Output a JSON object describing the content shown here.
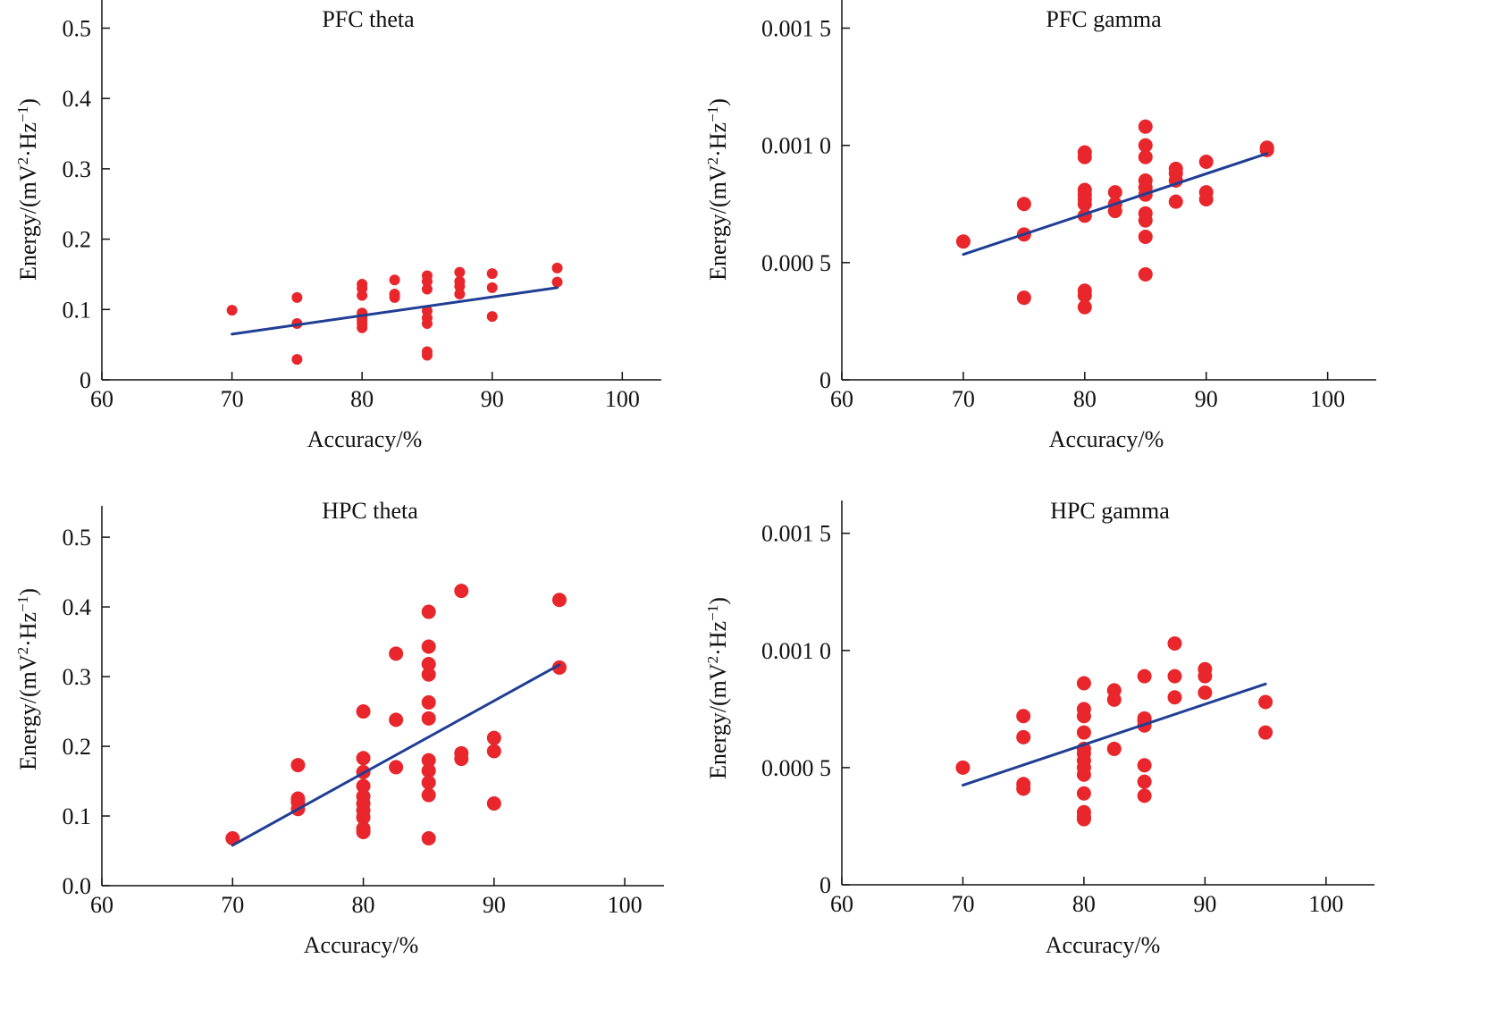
{
  "figure": {
    "colors": {
      "point": "#e8262b",
      "fit": "#1f3e94",
      "axis": "#111111"
    }
  },
  "chart_data": [
    {
      "type": "scatter",
      "title": "PFC theta",
      "xlabel": "Accuracy/%",
      "ylabel": {
        "base": "Energy/(mV",
        "sup1": "2",
        "mid": "·Hz",
        "sup2": "−1",
        "end": ")"
      },
      "xlim": [
        60,
        103
      ],
      "ylim": [
        0,
        0.54
      ],
      "xticks": [
        60,
        70,
        80,
        90,
        100
      ],
      "xtick_labels": [
        "60",
        "70",
        "80",
        "90",
        "100"
      ],
      "yticks": [
        0,
        0.1,
        0.2,
        0.3,
        0.4,
        0.5
      ],
      "ytick_labels": [
        "0",
        "0.1",
        "0.2",
        "0.3",
        "0.4",
        "0.5"
      ],
      "grid": false,
      "marker_radius": 6,
      "points": [
        [
          70,
          0.099
        ],
        [
          75,
          0.117
        ],
        [
          75,
          0.08
        ],
        [
          75,
          0.029
        ],
        [
          80,
          0.136
        ],
        [
          80,
          0.13
        ],
        [
          80,
          0.12
        ],
        [
          80,
          0.095
        ],
        [
          80,
          0.09
        ],
        [
          80,
          0.085
        ],
        [
          80,
          0.08
        ],
        [
          80,
          0.074
        ],
        [
          82.5,
          0.142
        ],
        [
          82.5,
          0.122
        ],
        [
          82.5,
          0.117
        ],
        [
          85,
          0.148
        ],
        [
          85,
          0.14
        ],
        [
          85,
          0.129
        ],
        [
          85,
          0.098
        ],
        [
          85,
          0.088
        ],
        [
          85,
          0.08
        ],
        [
          85,
          0.04
        ],
        [
          85,
          0.035
        ],
        [
          87.5,
          0.153
        ],
        [
          87.5,
          0.14
        ],
        [
          87.5,
          0.133
        ],
        [
          87.5,
          0.122
        ],
        [
          90,
          0.151
        ],
        [
          90,
          0.131
        ],
        [
          90,
          0.09
        ],
        [
          95,
          0.159
        ],
        [
          95,
          0.139
        ]
      ],
      "fit_line": {
        "x": [
          70,
          95
        ],
        "y": [
          0.065,
          0.131
        ]
      }
    },
    {
      "type": "scatter",
      "title": "PFC gamma",
      "xlabel": "Accuracy/%",
      "ylabel": {
        "base": "Energy/(mV",
        "sup1": "2",
        "mid": "·Hz",
        "sup2": "−1",
        "end": ")"
      },
      "xlim": [
        60,
        104
      ],
      "ylim": [
        0,
        0.00162
      ],
      "xticks": [
        60,
        70,
        80,
        90,
        100
      ],
      "xtick_labels": [
        "60",
        "70",
        "80",
        "90",
        "100"
      ],
      "yticks": [
        0,
        0.0005,
        0.001,
        0.0015
      ],
      "ytick_labels": [
        "0",
        "0.000 5",
        "0.001 0",
        "0.001 5"
      ],
      "grid": false,
      "marker_radius": 8,
      "points": [
        [
          70,
          0.00059
        ],
        [
          75,
          0.00075
        ],
        [
          75,
          0.00062
        ],
        [
          75,
          0.00035
        ],
        [
          80,
          0.00097
        ],
        [
          80,
          0.00095
        ],
        [
          80,
          0.00081
        ],
        [
          80,
          0.00079
        ],
        [
          80,
          0.00077
        ],
        [
          80,
          0.00075
        ],
        [
          80,
          0.0007
        ],
        [
          80,
          0.00038
        ],
        [
          80,
          0.00036
        ],
        [
          80,
          0.00031
        ],
        [
          82.5,
          0.0008
        ],
        [
          82.5,
          0.00075
        ],
        [
          82.5,
          0.00072
        ],
        [
          85,
          0.00108
        ],
        [
          85,
          0.001
        ],
        [
          85,
          0.00095
        ],
        [
          85,
          0.00085
        ],
        [
          85,
          0.00082
        ],
        [
          85,
          0.00079
        ],
        [
          85,
          0.00071
        ],
        [
          85,
          0.00068
        ],
        [
          85,
          0.00061
        ],
        [
          85,
          0.00045
        ],
        [
          87.5,
          0.0009
        ],
        [
          87.5,
          0.00088
        ],
        [
          87.5,
          0.00085
        ],
        [
          87.5,
          0.00076
        ],
        [
          90,
          0.00093
        ],
        [
          90,
          0.0008
        ],
        [
          90,
          0.00077
        ],
        [
          95,
          0.00099
        ],
        [
          95,
          0.00098
        ]
      ],
      "fit_line": {
        "x": [
          70,
          95
        ],
        "y": [
          0.000535,
          0.000965
        ]
      }
    },
    {
      "type": "scatter",
      "title": "HPC theta",
      "xlabel": "Accuracy/%",
      "ylabel": {
        "base": "Energy/(mV",
        "sup1": "2",
        "mid": "·Hz",
        "sup2": "−1",
        "end": ")"
      },
      "xlim": [
        60,
        103
      ],
      "ylim": [
        0,
        0.545
      ],
      "xticks": [
        60,
        70,
        80,
        90,
        100
      ],
      "xtick_labels": [
        "60",
        "70",
        "80",
        "90",
        "100"
      ],
      "yticks": [
        0,
        0.1,
        0.2,
        0.3,
        0.4,
        0.5
      ],
      "ytick_labels": [
        "0.0",
        "0.1",
        "0.2",
        "0.3",
        "0.4",
        "0.5"
      ],
      "grid": false,
      "marker_radius": 8,
      "points": [
        [
          70,
          0.068
        ],
        [
          75,
          0.173
        ],
        [
          75,
          0.125
        ],
        [
          75,
          0.12
        ],
        [
          75,
          0.11
        ],
        [
          80,
          0.25
        ],
        [
          80,
          0.183
        ],
        [
          80,
          0.163
        ],
        [
          80,
          0.143
        ],
        [
          80,
          0.128
        ],
        [
          80,
          0.118
        ],
        [
          80,
          0.108
        ],
        [
          80,
          0.098
        ],
        [
          80,
          0.082
        ],
        [
          80,
          0.077
        ],
        [
          82.5,
          0.333
        ],
        [
          82.5,
          0.238
        ],
        [
          82.5,
          0.17
        ],
        [
          85,
          0.393
        ],
        [
          85,
          0.343
        ],
        [
          85,
          0.318
        ],
        [
          85,
          0.303
        ],
        [
          85,
          0.263
        ],
        [
          85,
          0.24
        ],
        [
          85,
          0.18
        ],
        [
          85,
          0.165
        ],
        [
          85,
          0.148
        ],
        [
          85,
          0.13
        ],
        [
          85,
          0.068
        ],
        [
          87.5,
          0.423
        ],
        [
          87.5,
          0.19
        ],
        [
          87.5,
          0.182
        ],
        [
          90,
          0.212
        ],
        [
          90,
          0.193
        ],
        [
          90,
          0.118
        ],
        [
          95,
          0.41
        ],
        [
          95,
          0.313
        ]
      ],
      "fit_line": {
        "x": [
          70,
          95
        ],
        "y": [
          0.058,
          0.317
        ]
      }
    },
    {
      "type": "scatter",
      "title": "HPC gamma",
      "xlabel": "Accuracy/%",
      "ylabel": {
        "base": "Energy/(mV",
        "sup1": "2",
        "mid": "·Hz",
        "sup2": "−1",
        "end": ")"
      },
      "xlim": [
        60,
        104
      ],
      "ylim": [
        0,
        0.00164
      ],
      "xticks": [
        60,
        70,
        80,
        90,
        100
      ],
      "xtick_labels": [
        "60",
        "70",
        "80",
        "90",
        "100"
      ],
      "yticks": [
        0,
        0.0005,
        0.001,
        0.0015
      ],
      "ytick_labels": [
        "0",
        "0.000 5",
        "0.001 0",
        "0.001 5"
      ],
      "grid": false,
      "marker_radius": 8,
      "points": [
        [
          70,
          0.0005
        ],
        [
          75,
          0.00072
        ],
        [
          75,
          0.00063
        ],
        [
          75,
          0.00043
        ],
        [
          75,
          0.00041
        ],
        [
          80,
          0.00086
        ],
        [
          80,
          0.00075
        ],
        [
          80,
          0.00072
        ],
        [
          80,
          0.00065
        ],
        [
          80,
          0.00058
        ],
        [
          80,
          0.00056
        ],
        [
          80,
          0.00053
        ],
        [
          80,
          0.0005
        ],
        [
          80,
          0.00047
        ],
        [
          80,
          0.00039
        ],
        [
          80,
          0.00031
        ],
        [
          80,
          0.00029
        ],
        [
          80,
          0.00028
        ],
        [
          82.5,
          0.00083
        ],
        [
          82.5,
          0.00079
        ],
        [
          82.5,
          0.00058
        ],
        [
          85,
          0.00089
        ],
        [
          85,
          0.00071
        ],
        [
          85,
          0.0007
        ],
        [
          85,
          0.00068
        ],
        [
          85,
          0.00051
        ],
        [
          85,
          0.00044
        ],
        [
          85,
          0.00038
        ],
        [
          87.5,
          0.00103
        ],
        [
          87.5,
          0.00089
        ],
        [
          87.5,
          0.0008
        ],
        [
          90,
          0.00092
        ],
        [
          90,
          0.00089
        ],
        [
          90,
          0.00082
        ],
        [
          95,
          0.00078
        ],
        [
          95,
          0.00065
        ]
      ],
      "fit_line": {
        "x": [
          70,
          95
        ],
        "y": [
          0.000425,
          0.000857
        ]
      }
    }
  ]
}
